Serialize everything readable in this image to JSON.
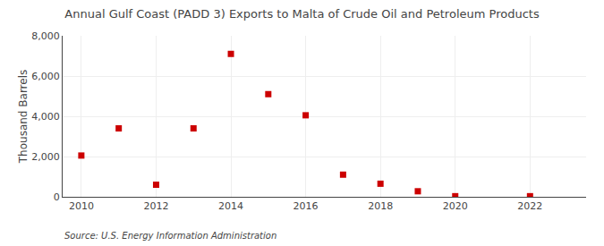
{
  "chart_data": {
    "type": "scatter",
    "title": "Annual Gulf Coast (PADD 3) Exports to Malta of Crude Oil and Petroleum Products",
    "ylabel": "Thousand Barrels",
    "source": "Source: U.S. Energy Information Administration",
    "x": [
      2010,
      2011,
      2012,
      2013,
      2014,
      2015,
      2016,
      2017,
      2018,
      2019,
      2020,
      2022
    ],
    "values": [
      2050,
      3400,
      600,
      3400,
      7100,
      5100,
      4050,
      1100,
      650,
      275,
      30,
      30
    ],
    "color": "#cc0000",
    "marker": "square",
    "xlim": [
      2009.5,
      2023.5
    ],
    "ylim": [
      0,
      8000
    ],
    "xticks": [
      2010,
      2012,
      2014,
      2016,
      2018,
      2020,
      2022
    ],
    "yticks": [
      0,
      {
        "value": 2000,
        "label": "2,000"
      },
      {
        "value": 4000,
        "label": "4,000"
      },
      {
        "value": 6000,
        "label": "6,000"
      },
      {
        "value": 8000,
        "label": "8,000"
      }
    ],
    "grid": true
  }
}
